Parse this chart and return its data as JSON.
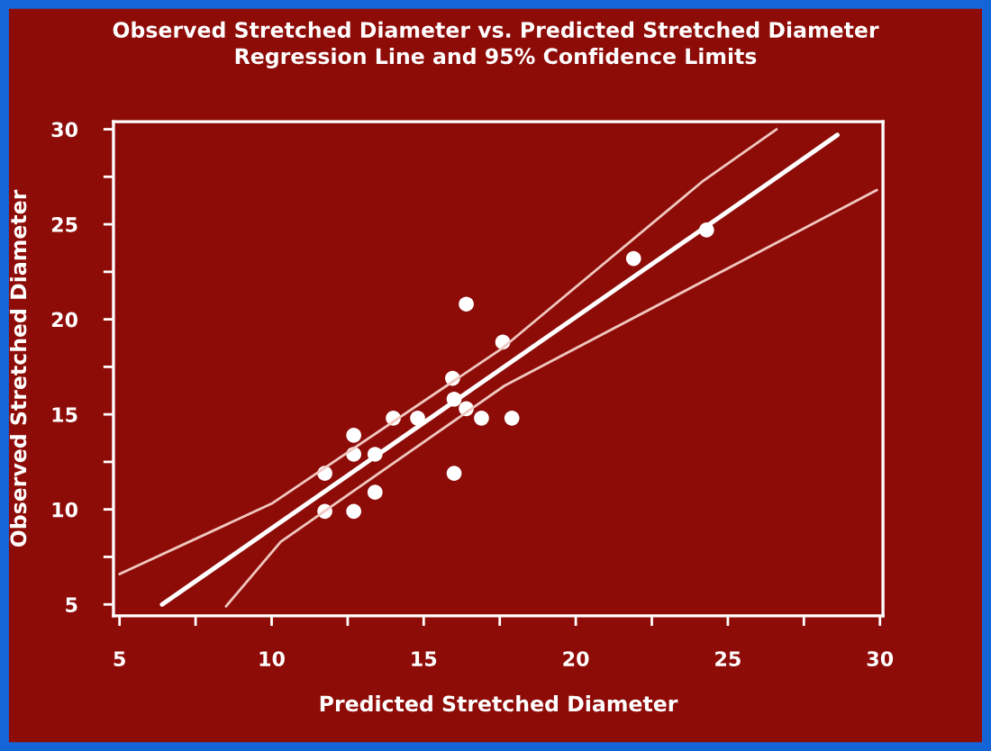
{
  "chart_data": {
    "type": "scatter",
    "title": "Observed Stretched Diameter vs. Predicted Stretched Diameter",
    "subtitle": "Regression Line and 95% Confidence Limits",
    "xlabel": "Predicted Stretched Diameter",
    "ylabel": "Observed Stretched Diameter",
    "series": [
      {
        "color": "#ffffff",
        "marker": "circle",
        "x": [
          16.4,
          17.6,
          15.95,
          16.0,
          16.4,
          16.9,
          14.0,
          14.8,
          12.7,
          12.7,
          13.4,
          11.75,
          16.0,
          13.4,
          11.75,
          12.7,
          24.3,
          21.9,
          17.9
        ],
        "values": [
          20.8,
          18.8,
          16.9,
          15.8,
          15.3,
          14.8,
          14.8,
          14.8,
          13.9,
          12.9,
          12.9,
          11.9,
          11.9,
          10.9,
          9.9,
          9.9,
          24.7,
          23.2,
          14.8
        ]
      },
      {
        "type": "line",
        "color": "#ffffff",
        "line_style": "solid",
        "x": [
          6.4,
          26.46,
          28.6
        ],
        "values": [
          5.0,
          27.3,
          29.7
        ]
      },
      {
        "type": "line",
        "color": "#f0c8c0",
        "line_style": "solid",
        "x": [
          5.0,
          10.0,
          17.6,
          24.2,
          26.6
        ],
        "values": [
          6.6,
          10.3,
          18.5,
          27.3,
          30.0
        ]
      },
      {
        "type": "line",
        "color": "#f0c8c0",
        "line_style": "solid",
        "x": [
          8.5,
          10.3,
          17.65,
          29.9
        ],
        "values": [
          4.9,
          8.3,
          16.5,
          26.8
        ]
      }
    ],
    "xlim": [
      4.8,
      30.1
    ],
    "ylim": [
      4.4,
      30.4
    ],
    "xticks": [
      5,
      {
        "value": 7.5,
        "label": null
      },
      10,
      {
        "value": 12.5,
        "label": null
      },
      15,
      {
        "value": 17.5,
        "label": null
      },
      20,
      {
        "value": 22.5,
        "label": null
      },
      25,
      {
        "value": 27.5,
        "label": null
      },
      30
    ],
    "yticks": [
      5,
      {
        "value": 7.5,
        "label": null
      },
      10,
      {
        "value": 12.5,
        "label": null
      },
      15,
      {
        "value": 17.5,
        "label": null
      },
      20,
      {
        "value": 22.5,
        "label": null
      },
      25,
      {
        "value": 27.5,
        "label": null
      },
      30
    ],
    "grid": false,
    "legend": false
  }
}
